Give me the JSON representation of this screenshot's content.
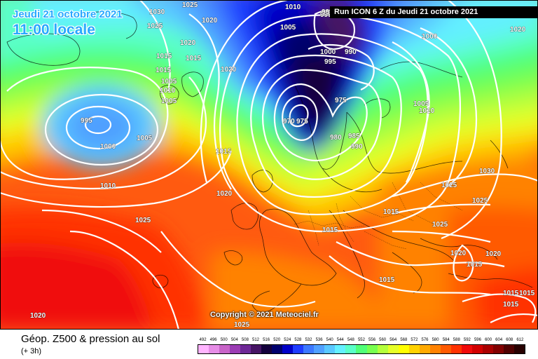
{
  "header": {
    "date_label": "Jeudi 21 octobre 2021",
    "time_label": "11:00 locale",
    "run_label": "Run ICON 6 Z du Jeudi 21 octobre 2021"
  },
  "copyright": "Copyright © 2021 Meteociel.fr",
  "footer": {
    "title": "Géop. Z500 & pression au sol",
    "subtitle": "(+ 3h)"
  },
  "legend": {
    "values": [
      "492",
      "496",
      "500",
      "504",
      "508",
      "512",
      "516",
      "520",
      "524",
      "528",
      "532",
      "536",
      "540",
      "544",
      "548",
      "552",
      "556",
      "560",
      "564",
      "568",
      "572",
      "576",
      "580",
      "584",
      "588",
      "592",
      "596",
      "600",
      "604",
      "608",
      "612"
    ],
    "colors": [
      "#ffb4ff",
      "#e68ce6",
      "#c864c8",
      "#9b3cb4",
      "#6e2896",
      "#461464",
      "#14003c",
      "#00006e",
      "#0000c8",
      "#1e3cff",
      "#3c78ff",
      "#50a0ff",
      "#5ac8ff",
      "#64f0ff",
      "#5affc8",
      "#50ff78",
      "#78ff50",
      "#b4ff3c",
      "#e6ff28",
      "#ffff00",
      "#ffd200",
      "#ffaa00",
      "#ff8200",
      "#ff5a00",
      "#ff3200",
      "#f00a0a",
      "#d20000",
      "#aa0000",
      "#820000",
      "#500000",
      "#280000"
    ]
  },
  "isobar_labels": [
    {
      "text": "1030"
    },
    {
      "text": "1025"
    },
    {
      "text": "1020"
    },
    {
      "text": "1020"
    },
    {
      "text": "1015"
    },
    {
      "text": "1015"
    },
    {
      "text": "1010"
    },
    {
      "text": "1005"
    },
    {
      "text": "1005"
    },
    {
      "text": "1005"
    },
    {
      "text": "1000"
    },
    {
      "text": "995"
    },
    {
      "text": "995"
    },
    {
      "text": "1000"
    },
    {
      "text": "990"
    },
    {
      "text": "995"
    },
    {
      "text": "1010"
    },
    {
      "text": "1005"
    },
    {
      "text": "1020"
    },
    {
      "text": "975"
    },
    {
      "text": "975"
    },
    {
      "text": "970"
    },
    {
      "text": "980"
    },
    {
      "text": "985"
    },
    {
      "text": "990"
    },
    {
      "text": "1000"
    },
    {
      "text": "1005"
    },
    {
      "text": "1010"
    },
    {
      "text": "1015"
    },
    {
      "text": "1015"
    },
    {
      "text": "1010"
    },
    {
      "text": "1015"
    },
    {
      "text": "1020"
    },
    {
      "text": "1025"
    },
    {
      "text": "1030"
    },
    {
      "text": "1025"
    },
    {
      "text": "1025"
    },
    {
      "text": "1015"
    },
    {
      "text": "1025"
    },
    {
      "text": "1015"
    },
    {
      "text": "1020"
    },
    {
      "text": "1020"
    },
    {
      "text": "1025"
    },
    {
      "text": "1020"
    },
    {
      "text": "1015"
    },
    {
      "text": "1015"
    },
    {
      "text": "1015"
    },
    {
      "text": "1025"
    },
    {
      "text": "1020"
    },
    {
      "text": "995"
    },
    {
      "text": "1015"
    }
  ]
}
